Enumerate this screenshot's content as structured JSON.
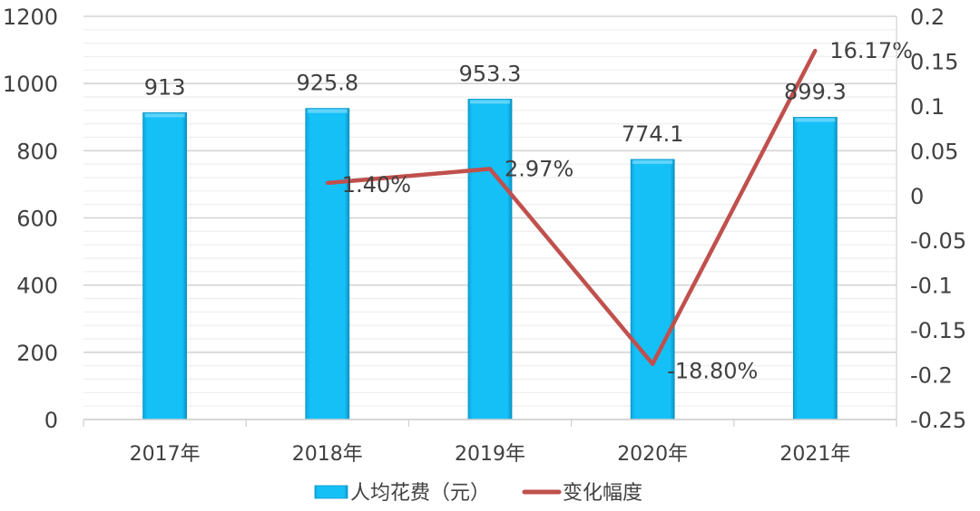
{
  "chart_data": {
    "type": "bar+line",
    "categories": [
      "2017年",
      "2018年",
      "2019年",
      "2020年",
      "2021年"
    ],
    "series": [
      {
        "name": "人均花费（元）",
        "type": "bar",
        "axis": "left",
        "values": [
          913,
          925.8,
          953.3,
          774.1,
          899.3
        ],
        "labels": [
          "913",
          "925.8",
          "953.3",
          "774.1",
          "899.3"
        ],
        "color": "#12BCF5"
      },
      {
        "name": "变化幅度",
        "type": "line",
        "axis": "right",
        "values": [
          null,
          0.014,
          0.0297,
          -0.188,
          0.1617
        ],
        "labels": [
          "",
          "1.40%",
          "2.97%",
          "-18.80%",
          "16.17%"
        ],
        "color": "#C0504D"
      }
    ],
    "left_axis": {
      "min": 0,
      "max": 1200,
      "step": 200,
      "ticks": [
        "0",
        "200",
        "400",
        "600",
        "800",
        "1000",
        "1200"
      ]
    },
    "right_axis": {
      "min": -0.25,
      "max": 0.2,
      "step": 0.05,
      "ticks": [
        "-0.25",
        "-0.2",
        "-0.15",
        "-0.1",
        "-0.05",
        "0",
        "0.05",
        "0.1",
        "0.15",
        "0.2"
      ]
    },
    "grid": true,
    "minor_grid": true,
    "legend": "bottom"
  }
}
